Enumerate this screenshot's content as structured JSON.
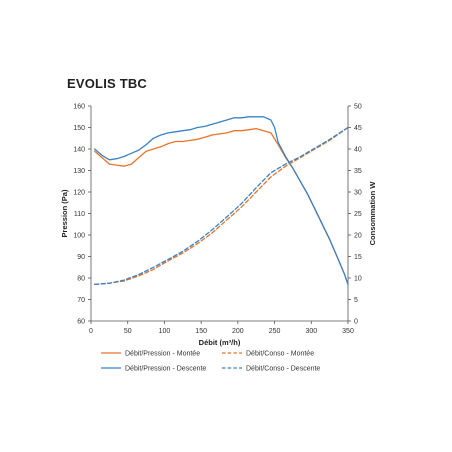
{
  "title": "EVOLIS TBC",
  "colors": {
    "montee": "#e8742a",
    "descente": "#3b82c4",
    "axis": "#555555",
    "text": "#333333"
  },
  "chart_data": {
    "type": "line",
    "title": "EVOLIS TBC",
    "xlabel": "Débit (m³/h)",
    "ylabel": "Pression (Pa)",
    "y2label": "Consommation W",
    "xlim": [
      0,
      350
    ],
    "ylim": [
      60,
      160
    ],
    "y2lim": [
      0,
      50
    ],
    "xticks": [
      "0",
      "50",
      "100",
      "150",
      "200",
      "250",
      "300",
      "350"
    ],
    "yticks": [
      "60",
      "70",
      "80",
      "90",
      "100",
      "110",
      "120",
      "130",
      "140",
      "150",
      "160"
    ],
    "y2ticks": [
      "0",
      "5",
      "10",
      "15",
      "20",
      "25",
      "30",
      "35",
      "40",
      "45",
      "50"
    ],
    "grid": false,
    "legend_position": "bottom",
    "series": [
      {
        "name": "Débit/Pression - Montée",
        "axis": "left",
        "style": "solid",
        "color": "#e8742a",
        "x": [
          5,
          15,
          25,
          35,
          45,
          55,
          65,
          75,
          85,
          95,
          105,
          115,
          125,
          135,
          145,
          155,
          165,
          175,
          185,
          195,
          205,
          215,
          225,
          235,
          245,
          255,
          265,
          275,
          285,
          295,
          305,
          315,
          325,
          335,
          345,
          350
        ],
        "y": [
          139,
          136,
          133,
          132.5,
          132,
          133,
          136,
          139,
          140,
          141,
          142.5,
          143.5,
          143.5,
          144,
          144.5,
          145.5,
          146.5,
          147,
          147.5,
          148.5,
          148.5,
          149,
          149.5,
          148.5,
          147.5,
          142,
          136,
          131,
          125,
          119,
          112,
          105,
          98,
          90,
          82,
          77
        ]
      },
      {
        "name": "Débit/Pression - Descente",
        "axis": "left",
        "style": "solid",
        "color": "#3b82c4",
        "x": [
          5,
          15,
          25,
          35,
          45,
          55,
          65,
          75,
          85,
          95,
          105,
          115,
          125,
          135,
          145,
          155,
          165,
          175,
          185,
          195,
          205,
          215,
          225,
          235,
          245,
          250,
          255,
          265,
          275,
          285,
          295,
          305,
          315,
          325,
          335,
          345,
          350
        ],
        "y": [
          140,
          137,
          135,
          135.5,
          136.5,
          138,
          139.5,
          142,
          145,
          146.5,
          147.5,
          148,
          148.5,
          149,
          150,
          150.5,
          151.5,
          152.5,
          153.5,
          154.5,
          154.5,
          155,
          155,
          155,
          153.5,
          150,
          143,
          136.5,
          131,
          125,
          119,
          112,
          105,
          98,
          90,
          82,
          77
        ]
      },
      {
        "name": "Débit/Conso - Montée",
        "axis": "right",
        "style": "dashed",
        "color": "#e8742a",
        "x": [
          5,
          25,
          45,
          65,
          85,
          105,
          125,
          145,
          165,
          185,
          205,
          225,
          245,
          265,
          285,
          305,
          325,
          350
        ],
        "y": [
          8.5,
          8.8,
          9.3,
          10.5,
          12,
          14,
          15.8,
          18,
          20.5,
          23.5,
          26.5,
          30,
          33.5,
          36,
          38,
          40,
          42,
          45
        ]
      },
      {
        "name": "Débit/Conso - Descente",
        "axis": "right",
        "style": "dashed",
        "color": "#3b82c4",
        "x": [
          5,
          25,
          45,
          65,
          85,
          105,
          125,
          145,
          165,
          185,
          205,
          225,
          245,
          265,
          285,
          305,
          325,
          350
        ],
        "y": [
          8.5,
          8.8,
          9.5,
          10.8,
          12.5,
          14.3,
          16.2,
          18.5,
          21.2,
          24.2,
          27.3,
          31,
          34.5,
          36.5,
          38.2,
          40.2,
          42.2,
          45
        ]
      }
    ]
  }
}
